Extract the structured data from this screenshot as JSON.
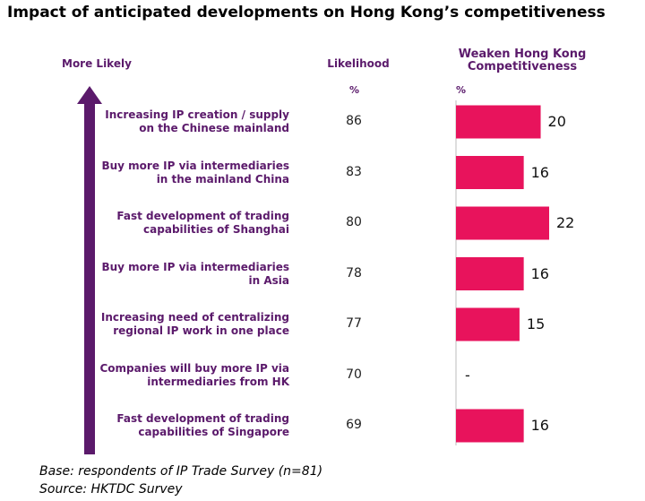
{
  "title": "Impact of anticipated developments on Hong Kong’s competitiveness",
  "arrow_label": "More Likely",
  "columns": {
    "likelihood": "Likelihood",
    "likelihood_unit": "%",
    "weaken_line1": "Weaken Hong Kong",
    "weaken_line2": "Competitiveness",
    "weaken_unit": "%"
  },
  "colors": {
    "bar": "#e8135c",
    "text": "#5b1a6b",
    "arrow": "#5b1a6b"
  },
  "chart_data": {
    "type": "bar",
    "orientation": "horizontal",
    "categories": [
      [
        "Increasing IP creation / supply",
        "on the Chinese mainland"
      ],
      [
        "Buy more IP via intermediaries",
        "in the mainland China"
      ],
      [
        "Fast development of trading",
        "capabilities of Shanghai"
      ],
      [
        "Buy more IP via intermediaries",
        "in Asia"
      ],
      [
        "Increasing need of centralizing",
        "regional IP work in one place"
      ],
      [
        "Companies will buy more IP via",
        "intermediaries from HK"
      ],
      [
        "Fast development of trading",
        "capabilities of Singapore"
      ]
    ],
    "likelihood": [
      "86",
      "83",
      "80",
      "78",
      "77",
      "70",
      "69"
    ],
    "values": [
      20,
      16,
      22,
      16,
      15,
      null,
      16
    ],
    "value_labels": [
      "20",
      "16",
      "22",
      "16",
      "15",
      "-",
      "16"
    ],
    "xlim": [
      0,
      22
    ],
    "grid": false,
    "legend": "none"
  },
  "footnotes": {
    "base": "Base: respondents of IP Trade Survey (n=81)",
    "source": "Source: HKTDC Survey"
  }
}
